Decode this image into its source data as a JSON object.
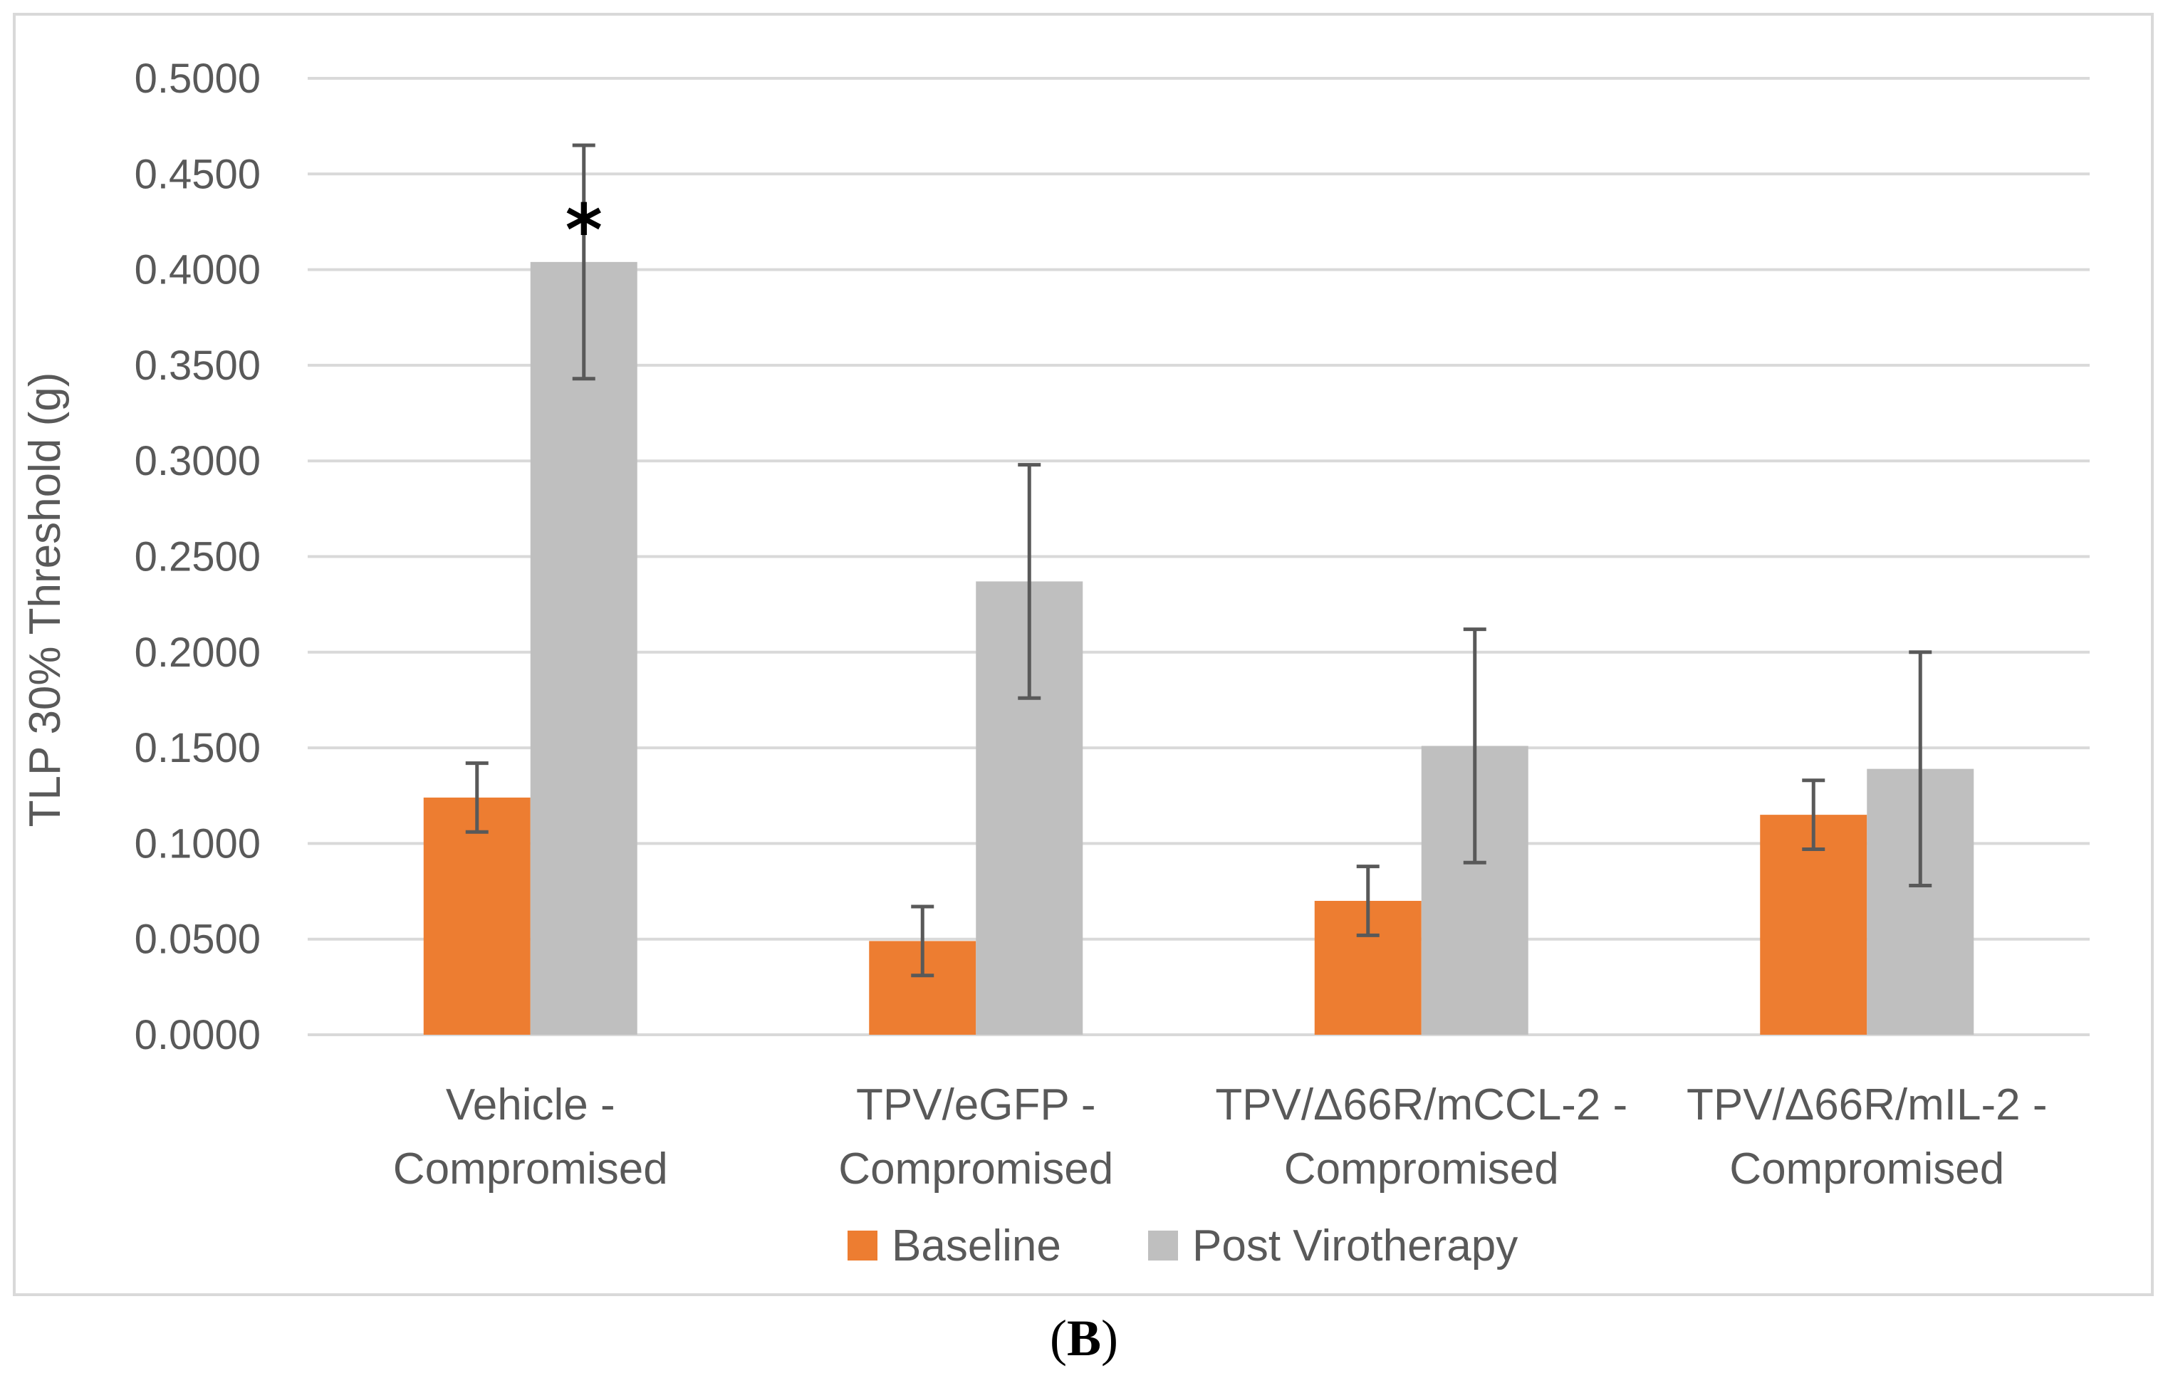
{
  "panel_label": {
    "open": "(",
    "letter": "B",
    "close": ")"
  },
  "chart_data": {
    "type": "bar",
    "title": "",
    "xlabel": "",
    "ylabel": "TLP 30% Threshold  (g)",
    "ylim": [
      0,
      0.5
    ],
    "y_ticks": [
      "0.0000",
      "0.0500",
      "0.1000",
      "0.1500",
      "0.2000",
      "0.2500",
      "0.3000",
      "0.3500",
      "0.4000",
      "0.4500",
      "0.5000"
    ],
    "grid": true,
    "legend_position": "bottom",
    "categories": [
      [
        "Vehicle -",
        "Compromised"
      ],
      [
        "TPV/eGFP -",
        "Compromised"
      ],
      [
        "TPV/Δ66R/mCCL-2 -",
        "Compromised"
      ],
      [
        "TPV/Δ66R/mIL-2 -",
        "Compromised"
      ]
    ],
    "series": [
      {
        "name": "Baseline",
        "color": "#ed7d31",
        "values": [
          0.124,
          0.049,
          0.07,
          0.115
        ],
        "errors": [
          0.018,
          0.018,
          0.018,
          0.018
        ]
      },
      {
        "name": "Post Virotherapy",
        "color": "#bfbfbf",
        "values": [
          0.404,
          0.237,
          0.151,
          0.139
        ],
        "errors": [
          0.061,
          0.061,
          0.061,
          0.061
        ]
      }
    ],
    "annotations": [
      {
        "text": "*",
        "category_index": 0,
        "series_index": 1
      }
    ]
  }
}
